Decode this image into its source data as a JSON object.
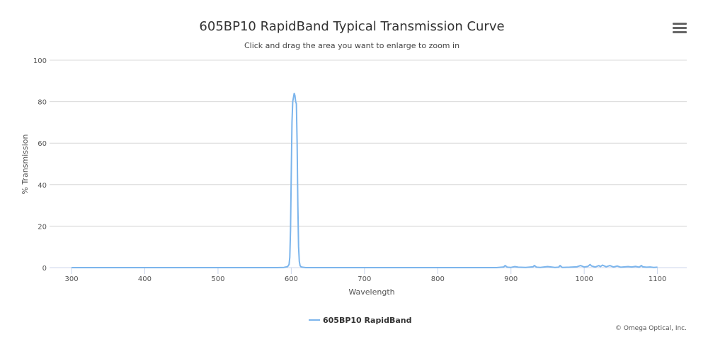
{
  "chart": {
    "title": "605BP10 RapidBand Typical Transmission Curve",
    "subtitle": "Click and drag the area you want to enlarge to zoom in",
    "menu_icon": "hamburger-menu-icon",
    "credits": "© Omega Optical, Inc.",
    "series_color": "#7cb5ec",
    "grid_color": "#d8d8d8"
  },
  "chart_data": {
    "type": "line",
    "title": "605BP10 RapidBand Typical Transmission Curve",
    "subtitle": "Click and drag the area you want to enlarge to zoom in",
    "xlabel": "Wavelength",
    "ylabel": "% Transmission",
    "xlim": [
      270,
      1140
    ],
    "ylim": [
      0,
      100
    ],
    "x_ticks": [
      300,
      400,
      500,
      600,
      700,
      800,
      900,
      1000,
      1100
    ],
    "y_ticks": [
      0,
      20,
      40,
      60,
      80,
      100
    ],
    "grid": true,
    "legend_position": "bottom-center",
    "series": [
      {
        "name": "605BP10 RapidBand",
        "x": [
          300,
          400,
          500,
          580,
          590,
          595,
          597,
          598,
          599,
          600,
          601,
          602,
          603,
          604,
          605,
          606,
          607,
          608,
          609,
          610,
          611,
          612,
          613,
          615,
          620,
          650,
          700,
          800,
          880,
          890,
          892,
          895,
          900,
          905,
          910,
          920,
          930,
          932,
          935,
          940,
          945,
          950,
          960,
          965,
          967,
          970,
          980,
          990,
          995,
          1000,
          1005,
          1008,
          1010,
          1015,
          1020,
          1022,
          1025,
          1030,
          1035,
          1040,
          1045,
          1050,
          1060,
          1065,
          1070,
          1075,
          1078,
          1080,
          1085,
          1090,
          1095,
          1100
        ],
        "values": [
          0,
          0,
          0,
          0,
          0.1,
          0.5,
          1.5,
          5,
          18,
          45,
          70,
          80,
          82,
          84,
          83,
          80,
          79,
          60,
          30,
          10,
          3,
          1,
          0.5,
          0.2,
          0,
          0,
          0,
          0,
          0,
          0.3,
          1,
          0.2,
          0.1,
          0.5,
          0.2,
          0.1,
          0.4,
          1,
          0.2,
          0.1,
          0.3,
          0.5,
          0.1,
          0.2,
          1,
          0.1,
          0.2,
          0.4,
          1,
          0.3,
          0.6,
          1.5,
          0.8,
          0.3,
          1,
          0.5,
          1.2,
          0.4,
          1,
          0.3,
          0.8,
          0.2,
          0.5,
          0.3,
          0.6,
          0.2,
          1,
          0.4,
          0.2,
          0.3,
          0.1,
          0.2
        ]
      }
    ]
  }
}
